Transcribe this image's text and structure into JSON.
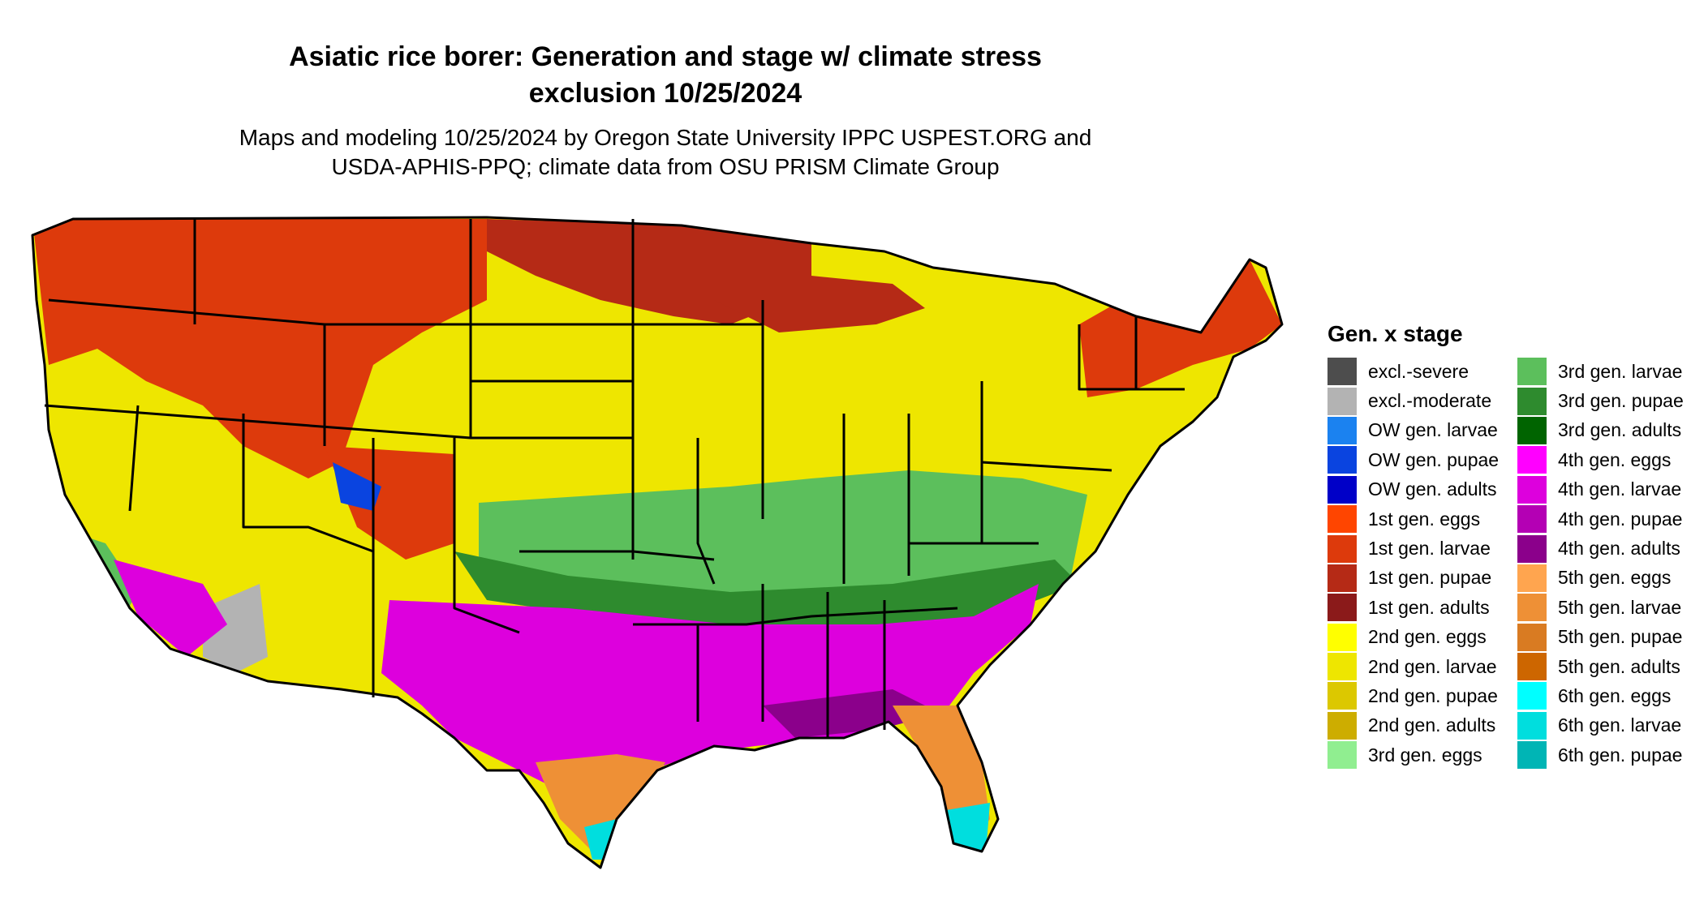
{
  "title": {
    "line1": "Asiatic rice borer: Generation and stage w/ climate stress",
    "line2": "exclusion 10/25/2024"
  },
  "subtitle": {
    "line1": "Maps and modeling 10/25/2024 by Oregon State University IPPC USPEST.ORG and",
    "line2": "USDA-APHIS-PPQ; climate data from OSU PRISM Climate Group"
  },
  "legend": {
    "title": "Gen. x stage",
    "items": [
      {
        "label": "excl.-severe",
        "color": "#4d4d4d"
      },
      {
        "label": "excl.-moderate",
        "color": "#b3b3b3"
      },
      {
        "label": "OW gen. larvae",
        "color": "#1b82f0"
      },
      {
        "label": "OW gen. pupae",
        "color": "#0a44e0"
      },
      {
        "label": "OW gen. adults",
        "color": "#0000c8"
      },
      {
        "label": "1st gen. eggs",
        "color": "#ff4500"
      },
      {
        "label": "1st gen. larvae",
        "color": "#dd3a0c"
      },
      {
        "label": "1st gen. pupae",
        "color": "#b52a16"
      },
      {
        "label": "1st gen. adults",
        "color": "#8b1a1a"
      },
      {
        "label": "2nd gen. eggs",
        "color": "#ffff00"
      },
      {
        "label": "2nd gen. larvae",
        "color": "#eee600"
      },
      {
        "label": "2nd gen. pupae",
        "color": "#dcc800"
      },
      {
        "label": "2nd gen. adults",
        "color": "#cdad00"
      },
      {
        "label": "3rd gen. eggs",
        "color": "#90ee90"
      },
      {
        "label": "3rd gen. larvae",
        "color": "#5cbf5c"
      },
      {
        "label": "3rd gen. pupae",
        "color": "#2e8b2e"
      },
      {
        "label": "3rd gen. adults",
        "color": "#006400"
      },
      {
        "label": "4th gen. eggs",
        "color": "#ff00ff"
      },
      {
        "label": "4th gen. larvae",
        "color": "#dd00dd"
      },
      {
        "label": "4th gen. pupae",
        "color": "#b400b4"
      },
      {
        "label": "4th gen. adults",
        "color": "#8b008b"
      },
      {
        "label": "5th gen. eggs",
        "color": "#ffa54f"
      },
      {
        "label": "5th gen. larvae",
        "color": "#ee9036"
      },
      {
        "label": "5th gen. pupae",
        "color": "#d97b22"
      },
      {
        "label": "5th gen. adults",
        "color": "#cd6600"
      },
      {
        "label": "6th gen. eggs",
        "color": "#00ffff"
      },
      {
        "label": "6th gen. larvae",
        "color": "#00dede"
      },
      {
        "label": "6th gen. pupae",
        "color": "#00b5b5"
      }
    ]
  }
}
